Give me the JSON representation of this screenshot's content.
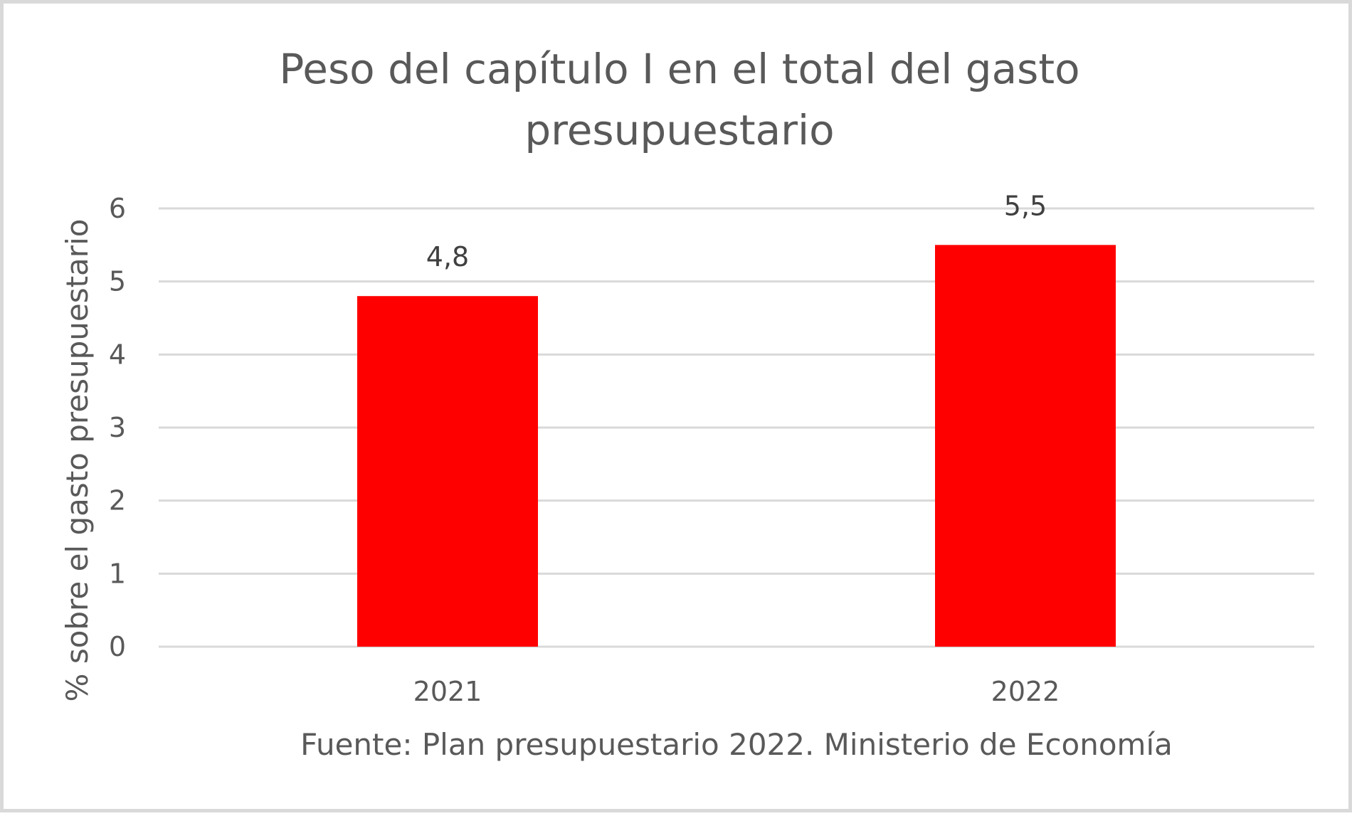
{
  "chart_data": {
    "type": "bar",
    "title_lines": [
      "Peso del capítulo I en el total del gasto",
      "presupuestario"
    ],
    "categories": [
      "2021",
      "2022"
    ],
    "values": [
      4.8,
      5.5
    ],
    "data_labels": [
      "4,8",
      "5,5"
    ],
    "ylabel": "% sobre el gasto presupuestario",
    "xlabel": "",
    "ylim": [
      0,
      6
    ],
    "yticks": [
      0,
      1,
      2,
      3,
      4,
      5,
      6
    ],
    "grid": true,
    "legend": "none",
    "bar_color": "#FF0000",
    "grid_color": "#D9D9D9",
    "source": "Fuente: Plan presupuestario 2022. Ministerio de Economía"
  }
}
